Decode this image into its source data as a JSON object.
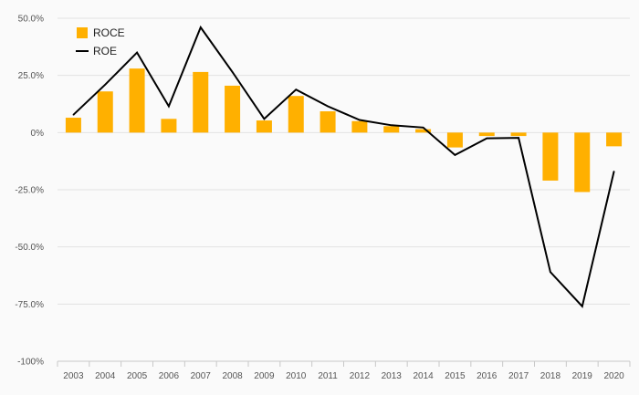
{
  "chart_data": {
    "type": "bar",
    "categories": [
      "2003",
      "2004",
      "2005",
      "2006",
      "2007",
      "2008",
      "2009",
      "2010",
      "2011",
      "2012",
      "2013",
      "2014",
      "2015",
      "2016",
      "2017",
      "2018",
      "2019",
      "2020"
    ],
    "series": [
      {
        "name": "ROCE",
        "type": "bar",
        "color": "#ffb000",
        "values": [
          6.5,
          18.0,
          28.0,
          6.0,
          26.5,
          20.5,
          5.3,
          16.0,
          9.3,
          5.0,
          2.8,
          1.5,
          -6.5,
          -1.5,
          -1.5,
          -21.0,
          -26.0,
          -6.0
        ]
      },
      {
        "name": "ROE",
        "type": "line",
        "color": "#000000",
        "values": [
          7.8,
          21.0,
          35.0,
          11.5,
          46.0,
          26.5,
          6.0,
          18.8,
          11.5,
          5.5,
          3.2,
          2.2,
          -9.8,
          -2.5,
          -2.3,
          -61.0,
          -76.0,
          -17.0
        ]
      }
    ],
    "ylim": [
      -100,
      50
    ],
    "yticks": [
      50,
      25,
      0,
      -25,
      -50,
      -75,
      -100
    ],
    "ytick_labels": [
      "50.0%",
      "25.0%",
      "0%",
      "-25.0%",
      "-50.0%",
      "-75.0%",
      "-100%"
    ],
    "title": "",
    "xlabel": "",
    "ylabel": "",
    "grid": true,
    "legend_position": "top-left"
  }
}
